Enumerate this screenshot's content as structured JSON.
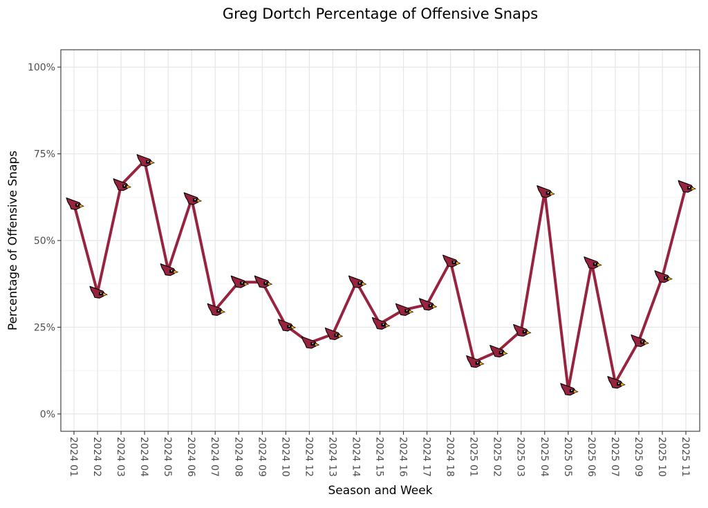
{
  "chart_data": {
    "type": "line",
    "title": "Greg Dortch Percentage of Offensive Snaps",
    "xlabel": "Season and Week",
    "ylabel": "Percentage of Offensive Snaps",
    "ylim": [
      -5,
      105
    ],
    "yticks": [
      0,
      25,
      50,
      75,
      100
    ],
    "ytick_labels": [
      "0%",
      "25%",
      "50%",
      "75%",
      "100%"
    ],
    "grid": true,
    "categories": [
      "2024 01",
      "2024 02",
      "2024 03",
      "2024 04",
      "2024 05",
      "2024 06",
      "2024 07",
      "2024 08",
      "2024 09",
      "2024 10",
      "2024 12",
      "2024 13",
      "2024 14",
      "2024 15",
      "2024 16",
      "2024 17",
      "2024 18",
      "2025 01",
      "2025 02",
      "2025 03",
      "2025 04",
      "2025 05",
      "2025 06",
      "2025 07",
      "2025 09",
      "2025 10",
      "2025 11"
    ],
    "series": [
      {
        "values": [
          60.5,
          35,
          66,
          73,
          41.5,
          62,
          30,
          38,
          38,
          25.5,
          20.5,
          23,
          38,
          26,
          30,
          31.5,
          44,
          15,
          18,
          24,
          64,
          7,
          43.5,
          9,
          21,
          39.5,
          65.5
        ]
      }
    ],
    "colors": {
      "line": "#97233F",
      "marker_body": "#97233F",
      "marker_beak": "#FFB612",
      "marker_mask": "#000000"
    },
    "marker_icon": "cardinal-head-icon"
  }
}
